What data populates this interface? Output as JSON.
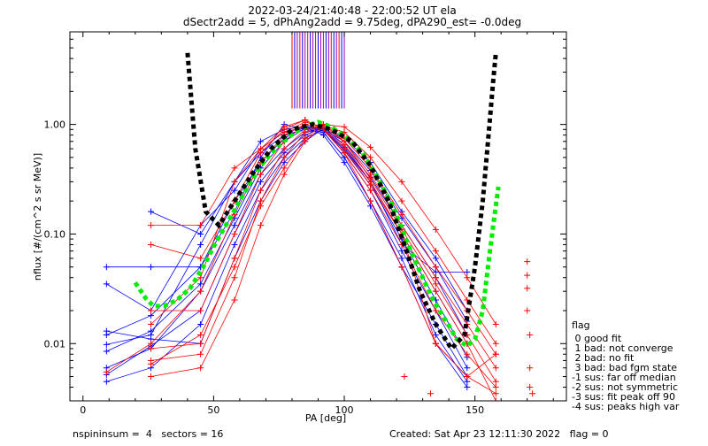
{
  "chart_data": {
    "type": "scatter",
    "title_line1": "2022-03-24/21:40:48 - 22:00:52 UT ela",
    "title_line2": "dSectr2add = 5, dPhAng2add = 9.75deg, dPA290_est=  -0.0deg",
    "xlabel": "PA [deg]",
    "ylabel": "nflux [#/(cm^2 s sr MeV)]",
    "xlim": [
      -5,
      185
    ],
    "ylim": [
      0.003,
      7.0
    ],
    "yscale": "log",
    "xticks": [
      0,
      50,
      100,
      150
    ],
    "yticks": [
      0.01,
      0.1,
      1.0
    ],
    "ytick_labels": [
      "0.01",
      "0.10",
      "1.00"
    ],
    "colors": {
      "blue": "#0000ff",
      "red": "#ff0000",
      "black": "#000000",
      "green": "#00ee00",
      "purple": "#9900aa"
    },
    "fit_black": {
      "name": "",
      "x": [
        40,
        43,
        47,
        52,
        58,
        65,
        72,
        80,
        88,
        95,
        103,
        110,
        117,
        123,
        129,
        135,
        141,
        146,
        150,
        153,
        155,
        157,
        158
      ],
      "y": [
        4.5,
        0.6,
        0.16,
        0.12,
        0.2,
        0.36,
        0.6,
        0.9,
        1.0,
        0.9,
        0.7,
        0.42,
        0.2,
        0.08,
        0.03,
        0.015,
        0.009,
        0.012,
        0.05,
        0.2,
        0.7,
        2.5,
        4.5
      ]
    },
    "fit_green": {
      "name": "",
      "x": [
        20,
        24,
        27,
        31,
        36,
        41,
        46,
        51,
        57,
        63,
        69,
        75,
        81,
        87,
        90,
        95,
        101,
        107,
        113,
        119,
        124,
        129,
        134,
        139,
        143,
        147,
        150,
        153,
        155,
        157,
        159
      ],
      "y": [
        0.036,
        0.026,
        0.022,
        0.022,
        0.025,
        0.032,
        0.05,
        0.085,
        0.15,
        0.27,
        0.45,
        0.65,
        0.85,
        1.0,
        1.05,
        0.95,
        0.75,
        0.55,
        0.32,
        0.17,
        0.085,
        0.045,
        0.025,
        0.016,
        0.011,
        0.0095,
        0.011,
        0.02,
        0.05,
        0.12,
        0.27
      ]
    },
    "series": [
      {
        "color": "blue",
        "x": [
          9,
          26,
          45,
          58,
          68,
          77,
          85,
          92,
          100,
          110,
          122,
          135,
          147
        ],
        "y": [
          0.012,
          0.018,
          0.05,
          0.2,
          0.45,
          0.75,
          0.95,
          0.88,
          0.6,
          0.3,
          0.1,
          0.03,
          0.01
        ]
      },
      {
        "color": "blue",
        "x": [
          9,
          26,
          45,
          58,
          68,
          77,
          85,
          92,
          100,
          110,
          122,
          135,
          147
        ],
        "y": [
          0.006,
          0.009,
          0.03,
          0.12,
          0.35,
          0.6,
          0.85,
          0.9,
          0.55,
          0.25,
          0.07,
          0.02,
          0.006
        ]
      },
      {
        "color": "blue",
        "x": [
          9,
          26,
          45,
          58,
          68,
          77,
          85,
          92,
          100,
          110,
          122,
          135,
          147
        ],
        "y": [
          0.0098,
          0.012,
          0.08,
          0.3,
          0.55,
          0.8,
          0.9,
          0.85,
          0.5,
          0.2,
          0.06,
          0.012,
          0.0045
        ]
      },
      {
        "color": "blue",
        "x": [
          9,
          26,
          45,
          58,
          68,
          77,
          85,
          92,
          100,
          110,
          122,
          135,
          147
        ],
        "y": [
          0.0052,
          0.0095,
          0.02,
          0.1,
          0.3,
          0.55,
          0.8,
          0.95,
          0.65,
          0.33,
          0.12,
          0.04,
          0.012
        ]
      },
      {
        "color": "blue",
        "x": [
          9,
          26,
          45,
          58,
          68,
          77,
          85,
          92,
          100,
          110,
          122,
          135,
          147
        ],
        "y": [
          0.05,
          0.05,
          0.05,
          0.16,
          0.5,
          1.0,
          0.9,
          0.85,
          0.5,
          0.2,
          0.05,
          0.015,
          0.005
        ]
      },
      {
        "color": "blue",
        "x": [
          9,
          26,
          45,
          58,
          68,
          77,
          85,
          92,
          100,
          110,
          122,
          135,
          147
        ],
        "y": [
          0.0085,
          0.013,
          0.035,
          0.14,
          0.4,
          0.7,
          0.92,
          0.88,
          0.58,
          0.28,
          0.09,
          0.025,
          0.0075
        ]
      },
      {
        "color": "blue",
        "x": [
          9,
          26,
          45,
          58,
          68,
          77,
          85,
          92,
          100,
          110,
          122,
          135,
          147
        ],
        "y": [
          0.0045,
          0.006,
          0.015,
          0.08,
          0.25,
          0.5,
          0.75,
          0.9,
          0.7,
          0.38,
          0.14,
          0.05,
          0.016
        ]
      },
      {
        "color": "blue",
        "x": [
          9,
          26,
          45,
          58,
          68,
          77,
          85,
          92,
          100,
          110,
          122,
          135,
          147
        ],
        "y": [
          0.035,
          0.02,
          0.12,
          0.25,
          0.6,
          0.85,
          0.95,
          0.8,
          0.45,
          0.18,
          0.05,
          0.01,
          0.004
        ]
      },
      {
        "color": "blue",
        "x": [
          26,
          45,
          58,
          68,
          77,
          85,
          92,
          100,
          110,
          122,
          135,
          147
        ],
        "y": [
          0.16,
          0.1,
          0.3,
          0.7,
          0.9,
          0.96,
          0.9,
          0.62,
          0.3,
          0.08,
          0.045,
          0.045
        ]
      },
      {
        "color": "blue",
        "x": [
          9,
          26,
          45,
          58,
          68,
          77,
          85,
          92,
          100,
          110,
          122,
          135,
          147
        ],
        "y": [
          0.013,
          0.011,
          0.01,
          0.06,
          0.2,
          0.45,
          0.7,
          0.92,
          0.75,
          0.45,
          0.16,
          0.06,
          0.02
        ]
      },
      {
        "color": "red",
        "x": [
          9,
          26,
          45,
          58,
          68,
          77,
          85,
          92,
          100,
          110,
          122,
          135,
          147,
          158
        ],
        "y": [
          0.0055,
          0.01,
          0.03,
          0.15,
          0.45,
          0.8,
          1.0,
          0.9,
          0.55,
          0.25,
          0.08,
          0.02,
          0.008,
          0.004
        ]
      },
      {
        "color": "red",
        "x": [
          26,
          45,
          58,
          68,
          77,
          85,
          92,
          100,
          110,
          122,
          135,
          147,
          158
        ],
        "y": [
          0.12,
          0.12,
          0.4,
          0.6,
          0.85,
          1.05,
          0.95,
          0.7,
          0.35,
          0.12,
          0.04,
          0.015,
          0.006
        ]
      },
      {
        "color": "red",
        "x": [
          26,
          45,
          58,
          68,
          77,
          85,
          92,
          100,
          110,
          122,
          135,
          147,
          158
        ],
        "y": [
          0.08,
          0.06,
          0.2,
          0.55,
          0.9,
          1.1,
          0.9,
          0.6,
          0.28,
          0.1,
          0.01,
          0.005,
          0.0035
        ]
      },
      {
        "color": "red",
        "x": [
          26,
          45,
          58,
          68,
          77,
          85,
          92,
          100,
          110,
          122,
          135,
          147,
          158
        ],
        "y": [
          0.007,
          0.008,
          0.04,
          0.2,
          0.5,
          0.85,
          1.0,
          0.75,
          0.4,
          0.15,
          0.05,
          0.02,
          0.008
        ]
      },
      {
        "color": "red",
        "x": [
          26,
          45,
          58,
          68,
          77,
          85,
          92,
          100,
          110,
          122,
          135,
          147,
          158
        ],
        "y": [
          0.005,
          0.006,
          0.025,
          0.12,
          0.35,
          0.7,
          0.98,
          0.85,
          0.5,
          0.2,
          0.07,
          0.025,
          0.01
        ]
      },
      {
        "color": "red",
        "x": [
          26,
          45,
          58,
          68,
          77,
          85,
          92,
          100,
          110,
          122,
          135,
          147,
          158
        ],
        "y": [
          0.015,
          0.04,
          0.3,
          0.6,
          0.95,
          1.1,
          0.9,
          0.55,
          0.2,
          0.05,
          0.01,
          0.005,
          0.008
        ]
      },
      {
        "color": "red",
        "x": [
          26,
          45,
          58,
          68,
          77,
          85,
          92,
          100,
          110,
          122,
          135,
          147,
          158
        ],
        "y": [
          0.009,
          0.01,
          0.06,
          0.25,
          0.6,
          0.9,
          1.0,
          0.7,
          0.32,
          0.11,
          0.035,
          0.012,
          0.0045
        ]
      },
      {
        "color": "red",
        "x": [
          26,
          45,
          58,
          68,
          77,
          85,
          92,
          100,
          110,
          122,
          135,
          147,
          158
        ],
        "y": [
          0.0065,
          0.012,
          0.05,
          0.18,
          0.4,
          0.75,
          1.0,
          0.95,
          0.62,
          0.3,
          0.11,
          0.04,
          0.015
        ]
      },
      {
        "color": "red",
        "x": [
          26,
          45,
          58,
          68,
          77,
          85,
          92,
          100,
          110,
          122,
          135,
          147,
          158
        ],
        "y": [
          0.02,
          0.02,
          0.1,
          0.35,
          0.7,
          1.0,
          0.9,
          0.65,
          0.3,
          0.1,
          0.03,
          0.01,
          0.003
        ]
      }
    ],
    "extra_points": [
      {
        "color": "red",
        "x": 170,
        "y": 0.056
      },
      {
        "color": "red",
        "x": 170,
        "y": 0.042
      },
      {
        "color": "red",
        "x": 170,
        "y": 0.032
      },
      {
        "color": "red",
        "x": 170,
        "y": 0.02
      },
      {
        "color": "red",
        "x": 171,
        "y": 0.012
      },
      {
        "color": "red",
        "x": 171,
        "y": 0.006
      },
      {
        "color": "red",
        "x": 171,
        "y": 0.004
      },
      {
        "color": "red",
        "x": 172,
        "y": 0.0035
      },
      {
        "color": "red",
        "x": 123,
        "y": 0.005
      },
      {
        "color": "red",
        "x": 133,
        "y": 0.0035
      }
    ],
    "spikes_x": [
      80,
      81,
      82,
      83,
      84,
      85,
      86,
      87,
      88,
      89,
      90,
      91,
      92,
      93,
      94,
      95,
      96,
      97,
      98,
      99,
      100
    ],
    "spikes_bottom": 1.4
  },
  "legend": {
    "heading": "flag",
    "entries": [
      " 0 good fit",
      " 1 bad: not converge",
      " 2 bad: no fit",
      " 3 bad: bad fgm state",
      "-1 sus: far off median",
      "-2 sus: not symmetric",
      "-3 sus: fit peak off 90",
      "-4 sus: peaks high var"
    ]
  },
  "footer": {
    "left": "nspininsum =  4   sectors = 16",
    "right": "Created: Sat Apr 23 12:11:30 2022   flag = 0"
  }
}
